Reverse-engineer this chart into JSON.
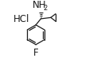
{
  "background_color": "#ffffff",
  "border_color": "#cccccc",
  "hcl_label": "HCl",
  "hcl_fontsize": 8.5,
  "nh2_label": "NH",
  "nh2_sub": "2",
  "nh2_fontsize": 8.5,
  "f_label": "F",
  "f_fontsize": 8.5,
  "line_color": "#1a1a1a",
  "line_width": 0.9
}
